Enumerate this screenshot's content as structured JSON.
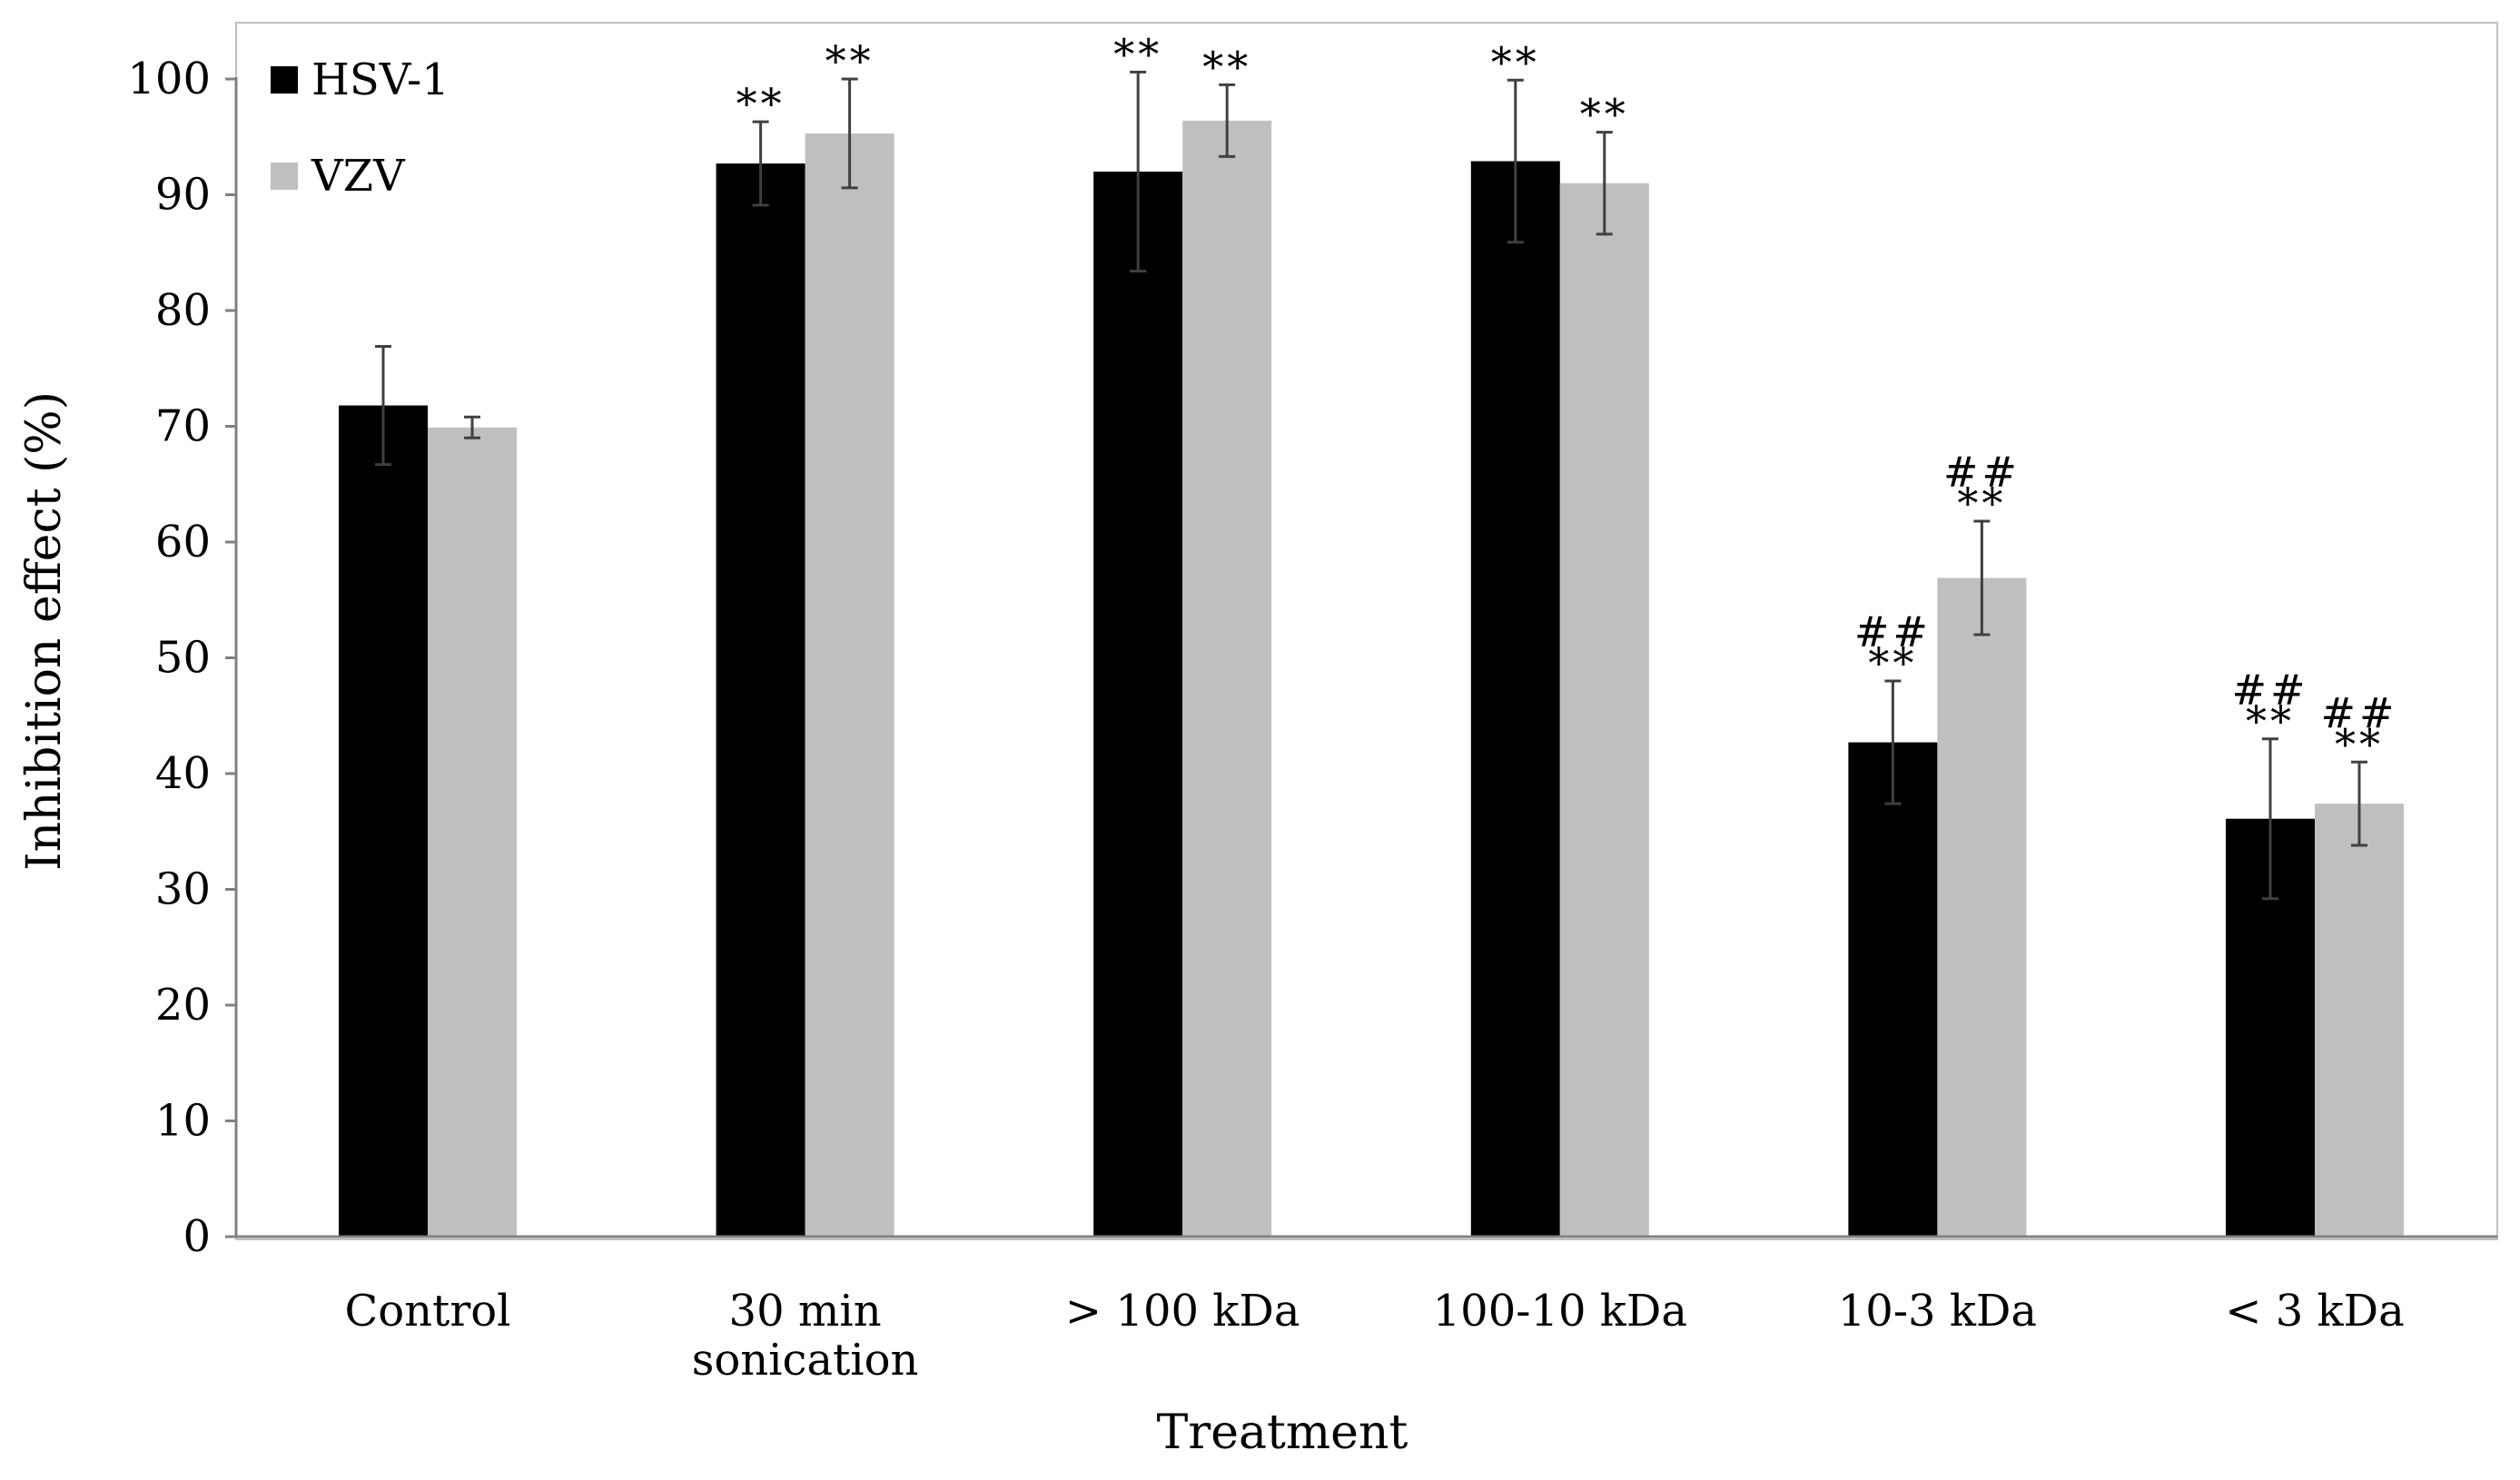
{
  "chart_data": {
    "type": "bar",
    "title": "",
    "xlabel": "Treatment",
    "ylabel": "Inhibition effect (%)",
    "ylim": [
      0,
      100
    ],
    "yticks": [
      "0",
      "10",
      "20",
      "30",
      "40",
      "50",
      "60",
      "70",
      "80",
      "90",
      "100"
    ],
    "categories": [
      [
        "Control"
      ],
      [
        "30 min",
        "sonication"
      ],
      [
        "> 100 kDa"
      ],
      [
        "100-10 kDa"
      ],
      [
        "10-3 kDa"
      ],
      [
        "< 3 kDa"
      ]
    ],
    "legend_position": "top-left",
    "series": [
      {
        "name": "HSV-1",
        "color": "#000000",
        "values": [
          71.8,
          92.7,
          92.0,
          92.9,
          42.7,
          36.1
        ],
        "errors": [
          5.1,
          3.6,
          8.6,
          7.0,
          5.3,
          6.9
        ],
        "annotations": [
          [],
          [
            "**"
          ],
          [
            "**"
          ],
          [
            "**"
          ],
          [
            "##",
            "**"
          ],
          [
            "##",
            "**"
          ]
        ]
      },
      {
        "name": "VZV",
        "color": "#bfbfbf",
        "values": [
          69.9,
          95.3,
          96.4,
          91.0,
          56.9,
          37.4
        ],
        "errors": [
          0.9,
          4.7,
          3.1,
          4.4,
          4.9,
          3.6
        ],
        "annotations": [
          [],
          [
            "**"
          ],
          [
            "**"
          ],
          [
            "**"
          ],
          [
            "##",
            "**"
          ],
          [
            "##",
            "**"
          ]
        ]
      }
    ]
  }
}
